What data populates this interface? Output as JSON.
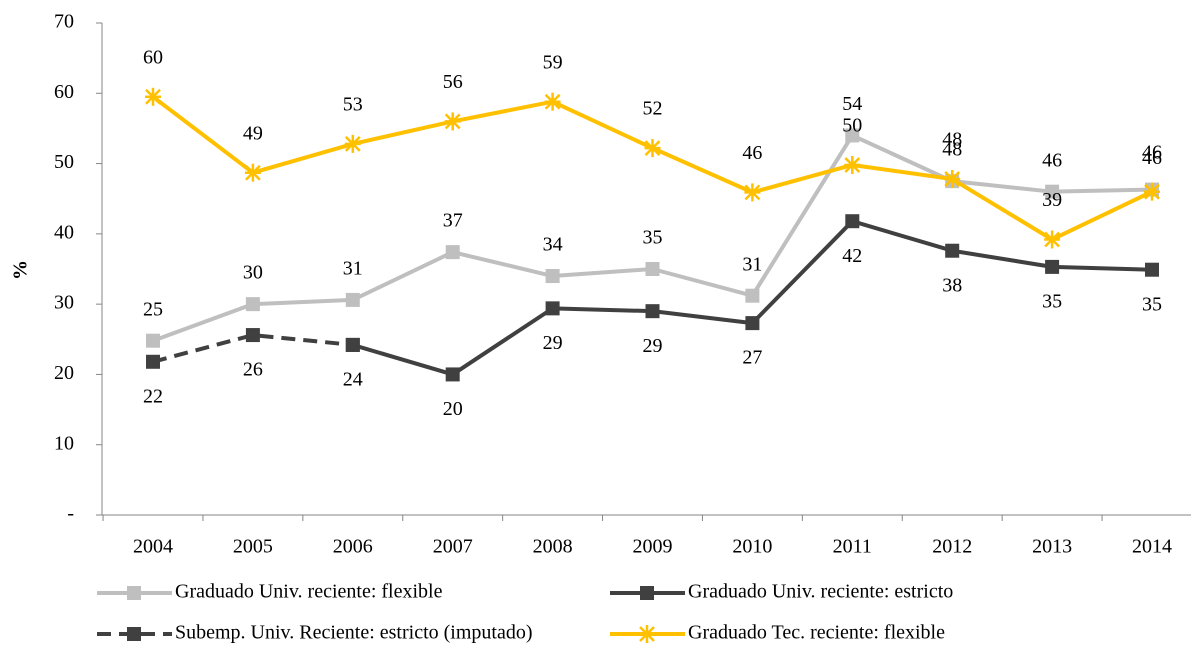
{
  "chart_data": {
    "type": "line",
    "y_label": "%",
    "categories": [
      "2004",
      "2005",
      "2006",
      "2007",
      "2008",
      "2009",
      "2010",
      "2011",
      "2012",
      "2013",
      "2014"
    ],
    "ylim": [
      0,
      70
    ],
    "yticks": [
      {
        "value": 0,
        "label": "-"
      },
      10,
      20,
      30,
      40,
      50,
      60,
      70
    ],
    "grid": false,
    "legend": "bottom",
    "series": [
      {
        "name": "Graduado Univ. reciente: flexible",
        "color": "#bfbfbf",
        "marker": "square",
        "dash": false,
        "values": [
          24.8,
          30,
          30.6,
          37.4,
          34,
          35,
          31.2,
          54,
          47.5,
          46,
          46.3
        ],
        "value_labels": [
          "25",
          "30",
          "31",
          "37",
          "34",
          "35",
          "31",
          "54",
          "48",
          "46",
          "46"
        ]
      },
      {
        "name": "Graduado Univ. reciente: estricto",
        "color": "#404040",
        "marker": "square",
        "dash": false,
        "values": [
          null,
          null,
          24.2,
          20,
          29.4,
          29,
          27.3,
          41.8,
          37.6,
          35.3,
          34.9
        ],
        "value_labels": [
          null,
          null,
          "24",
          "20",
          "29",
          "29",
          "27",
          "42",
          "38",
          "35",
          "35"
        ]
      },
      {
        "name": "Subemp. Univ. Reciente: estricto (imputado)",
        "color": "#404040",
        "marker": "square",
        "dash": true,
        "values": [
          21.8,
          25.6,
          24.2,
          null,
          null,
          null,
          null,
          null,
          null,
          null,
          null
        ],
        "value_labels": [
          "22",
          "26",
          null,
          null,
          null,
          null,
          null,
          null,
          null,
          null,
          null
        ]
      },
      {
        "name": "Graduado Tec. reciente: flexible",
        "color": "#ffc000",
        "marker": "star",
        "dash": false,
        "values": [
          59.5,
          48.7,
          52.8,
          56,
          58.8,
          52.2,
          45.9,
          49.8,
          47.8,
          39.2,
          46
        ],
        "value_labels": [
          "60",
          "49",
          "53",
          "56",
          "59",
          "52",
          "46",
          "50",
          "48",
          "39",
          "46"
        ]
      }
    ]
  }
}
